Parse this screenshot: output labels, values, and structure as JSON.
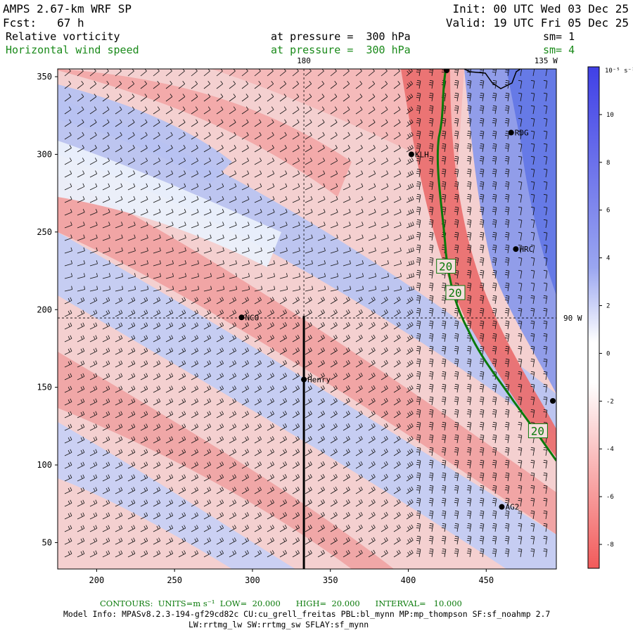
{
  "header": {
    "model": "AMPS 2.67-km WRF SP",
    "forecast": "Fcst:   67 h",
    "init": "Init: 00 UTC Wed 03 Dec 25",
    "valid": "Valid: 19 UTC Fri 05 Dec 25",
    "field1": "Relative vorticity",
    "field1_level": "at pressure =  300 hPa",
    "field1_sm": "sm= 1",
    "field2": "Horizontal wind speed",
    "field2_level": "at pressure =  300 hPa",
    "field2_sm": "sm= 4"
  },
  "chart_data": {
    "type": "heatmap",
    "title": "Relative vorticity / Horizontal wind speed at 300 hPa",
    "xlim": [
      175,
      495
    ],
    "ylim": [
      33,
      355
    ],
    "x_ticks": [
      200,
      250,
      300,
      350,
      400,
      450
    ],
    "y_ticks": [
      50,
      100,
      150,
      200,
      250,
      300,
      350
    ],
    "colorbar": {
      "unit_label": "10⁻⁵ s⁻¹",
      "ticks": [
        10,
        8,
        6,
        4,
        2,
        0,
        -2,
        -4,
        -6,
        -8
      ],
      "range": [
        -9,
        12
      ],
      "colors": {
        "positive": "#4a4ae8",
        "zero": "#ffffff",
        "negative": "#f26464"
      }
    },
    "meridians": [
      {
        "label": "180",
        "x": 333
      },
      {
        "label": "135 W",
        "x": 475
      },
      {
        "label": "90 W",
        "y": 196
      }
    ],
    "stations": [
      {
        "name": "RDG",
        "x": 466,
        "y": 314
      },
      {
        "name": "KLH",
        "x": 402,
        "y": 300
      },
      {
        "name": "HRC",
        "x": 469,
        "y": 239
      },
      {
        "name": "NCO",
        "x": 293,
        "y": 195
      },
      {
        "name": "Henry",
        "x": 333,
        "y": 155
      },
      {
        "name": "AG2",
        "x": 460,
        "y": 73
      }
    ],
    "cross_section_line": {
      "x": 333,
      "y": [
        33,
        196
      ]
    },
    "contour": {
      "field": "Horizontal wind speed",
      "level": 20,
      "labels": [
        {
          "text": "20",
          "x": 424,
          "y": 228
        },
        {
          "text": "20",
          "x": 430,
          "y": 211
        },
        {
          "text": "20",
          "x": 483,
          "y": 122
        }
      ]
    }
  },
  "footer": {
    "contours_label": "CONTOURS:  UNITS=m s⁻¹  LOW=  20.000      HIGH=  20.000      INTERVAL=   10.000",
    "model_info": "Model Info: MPASv8.2.3-194-gf29cd82c CU:cu_grell_freitas PBL:bl_mynn MP:mp_thompson SF:sf_noahmp 2.7",
    "model_info2": "LW:rrtmg_lw SW:rrtmg_sw SFLAY:sf_mynn"
  }
}
